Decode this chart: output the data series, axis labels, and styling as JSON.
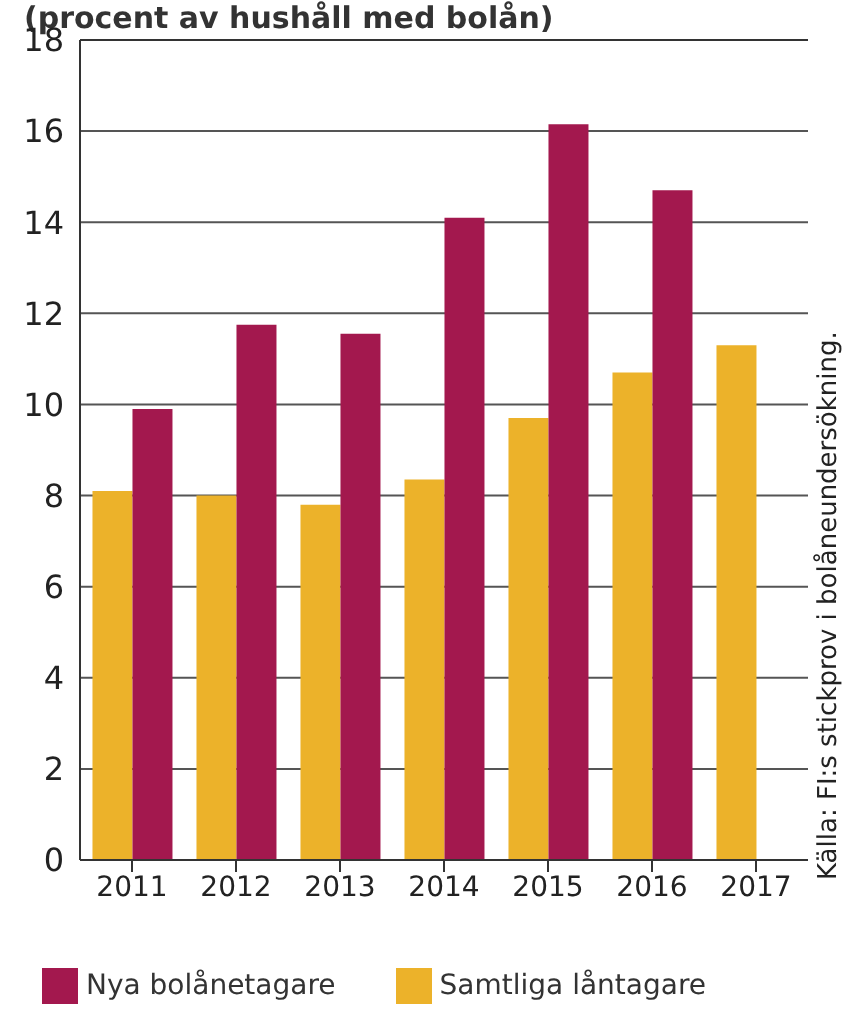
{
  "chart_data": {
    "type": "bar",
    "title": "(procent av hushåll med bolån)",
    "categories": [
      "2011",
      "2012",
      "2013",
      "2014",
      "2015",
      "2016",
      "2017"
    ],
    "series": [
      {
        "name": "Samtliga låntagare",
        "color": "#ecb22a",
        "values": [
          8.1,
          8.0,
          7.8,
          8.35,
          9.7,
          10.7,
          11.3
        ]
      },
      {
        "name": "Nya bolånetagare",
        "color": "#a3184e",
        "values": [
          9.9,
          11.75,
          11.55,
          14.1,
          16.15,
          14.7,
          null
        ]
      }
    ],
    "ylim": [
      0,
      18
    ],
    "yticks": [
      0,
      2,
      4,
      6,
      8,
      10,
      12,
      14,
      16,
      18
    ],
    "grid": "y",
    "legend": "bottom",
    "annotations": [
      "Källa: FI:s stickprov i bolåneundersökning."
    ]
  }
}
